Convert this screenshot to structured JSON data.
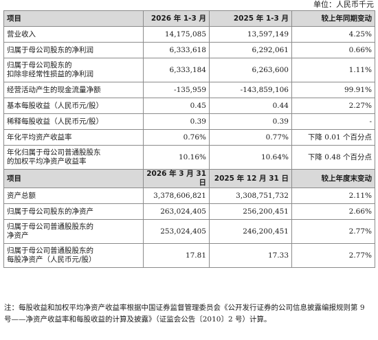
{
  "unit_label": "单位：人民币千元",
  "table1": {
    "headers": [
      "项目",
      "2026 年 1-3 月",
      "2025 年 1-3 月",
      "较上年同期变动"
    ],
    "rows": [
      [
        "营业收入",
        "14,175,085",
        "13,597,149",
        "4.25%"
      ],
      [
        "归属于母公司股东的净利润",
        "6,333,618",
        "6,292,061",
        "0.66%"
      ],
      [
        "归属于母公司股东的\n扣除非经常性损益的净利润",
        "6,333,184",
        "6,263,600",
        "1.11%"
      ],
      [
        "经营活动产生的现金流量净额",
        "-135,959",
        "-143,859,106",
        "99.91%"
      ],
      [
        "基本每股收益（人民币元/股）",
        "0.45",
        "0.44",
        "2.27%"
      ],
      [
        "稀释每股收益（人民币元/股）",
        "0.39",
        "0.39",
        "-"
      ],
      [
        "年化平均资产收益率",
        "0.76%",
        "0.77%",
        "下降 0.01 个百分点"
      ],
      [
        "年化归属于母公司普通股股东\n的加权平均净资产收益率",
        "10.16%",
        "10.64%",
        "下降 0.48 个百分点"
      ]
    ]
  },
  "table2": {
    "headers": [
      "项目",
      "2026 年 3 月 31 日",
      "2025 年 12 月 31 日",
      "较上年度末变动"
    ],
    "rows": [
      [
        "资产总额",
        "3,378,606,821",
        "3,308,751,732",
        "2.11%"
      ],
      [
        "归属于母公司股东的净资产",
        "263,024,405",
        "256,200,451",
        "2.66%"
      ],
      [
        "归属于母公司普通股股东的\n净资产",
        "253,024,405",
        "246,200,451",
        "2.77%"
      ],
      [
        "归属于母公司普通股股东的\n每股净资产（人民币元/股）",
        "17.81",
        "17.33",
        "2.77%"
      ]
    ]
  },
  "note": "注：每股收益和加权平均净资产收益率根据中国证券监督管理委员会《公开发行证券的公司信息披露编报规则第 9 号——净资产收益率和每股收益的计算及披露》（证监会公告〔2010〕2 号）计算。"
}
